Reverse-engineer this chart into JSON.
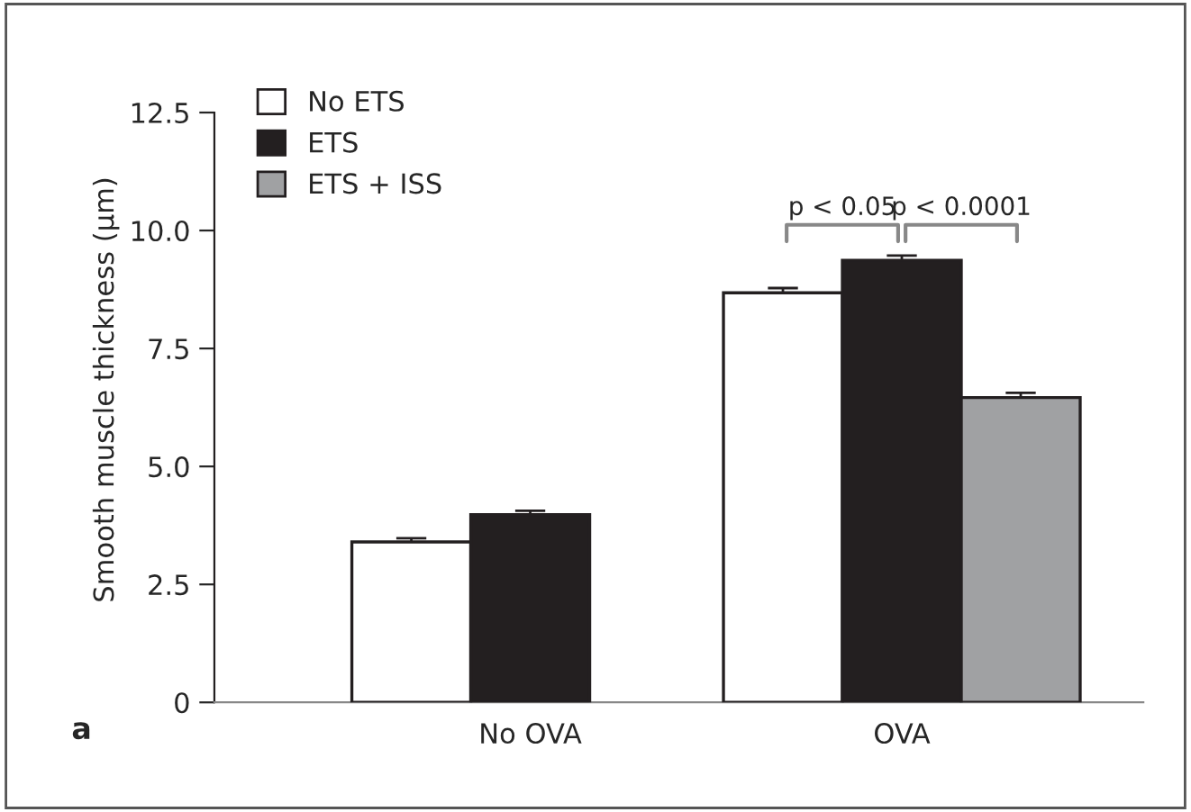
{
  "chart_data": {
    "type": "bar",
    "ylabel": "Smooth muscle thickness (μm)",
    "categories": [
      "No OVA",
      "OVA"
    ],
    "series": [
      {
        "name": "No ETS",
        "color": "#ffffff",
        "values": [
          3.4,
          8.68
        ],
        "errors": [
          0.08,
          0.1
        ]
      },
      {
        "name": "ETS",
        "color": "#231f20",
        "values": [
          3.98,
          9.37
        ],
        "errors": [
          0.08,
          0.1
        ]
      },
      {
        "name": "ETS + ISS",
        "color": "#a0a1a3",
        "values": [
          null,
          6.46
        ],
        "errors": [
          null,
          0.1
        ]
      }
    ],
    "ylim": [
      0,
      12.5
    ],
    "yticks": [
      0,
      {
        "value": 2.5,
        "label": "2.5"
      },
      {
        "value": 5,
        "label": "5.0"
      },
      {
        "value": 7.5,
        "label": "7.5"
      },
      {
        "value": 10,
        "label": "10.0"
      },
      {
        "value": 12.5,
        "label": "12.5"
      }
    ],
    "annotations": [
      "a",
      "p < 0.05",
      "p < 0.0001"
    ],
    "legend": "top left",
    "grid": false
  }
}
